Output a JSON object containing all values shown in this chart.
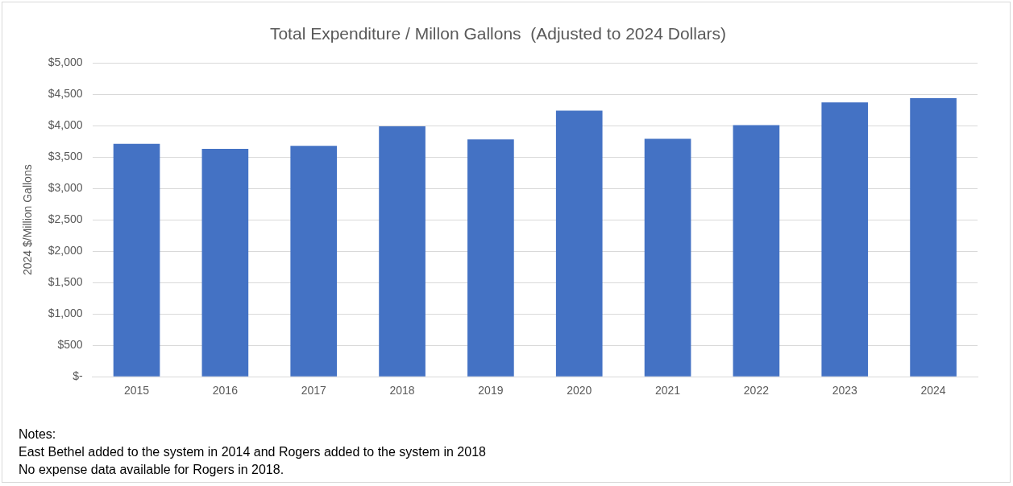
{
  "chart_data": {
    "type": "bar",
    "title": "Total Expenditure / Millon Gallons  (Adjusted to 2024 Dollars)",
    "ylabel": "2024 $/Million Gallons",
    "categories": [
      "2015",
      "2016",
      "2017",
      "2018",
      "2019",
      "2020",
      "2021",
      "2022",
      "2023",
      "2024"
    ],
    "values": [
      3710,
      3630,
      3680,
      3990,
      3780,
      4240,
      3790,
      4010,
      4370,
      4440
    ],
    "color": "#4472c4",
    "ylim": [
      0,
      5000
    ],
    "yticks": [
      {
        "value": 0,
        "label": "$-"
      },
      {
        "value": 500,
        "label": "$500"
      },
      {
        "value": 1000,
        "label": "$1,000"
      },
      {
        "value": 1500,
        "label": "$1,500"
      },
      {
        "value": 2000,
        "label": "$2,000"
      },
      {
        "value": 2500,
        "label": "$2,500"
      },
      {
        "value": 3000,
        "label": "$3,000"
      },
      {
        "value": 3500,
        "label": "$3,500"
      },
      {
        "value": 4000,
        "label": "$4,000"
      },
      {
        "value": 4500,
        "label": "$4,500"
      },
      {
        "value": 5000,
        "label": "$5,000"
      }
    ],
    "grid": "y",
    "legend": false,
    "annotations": [
      "Notes:",
      "East Bethel added to the system in 2014 and Rogers added to the system in 2018",
      "No expense data available for Rogers in 2018."
    ]
  }
}
